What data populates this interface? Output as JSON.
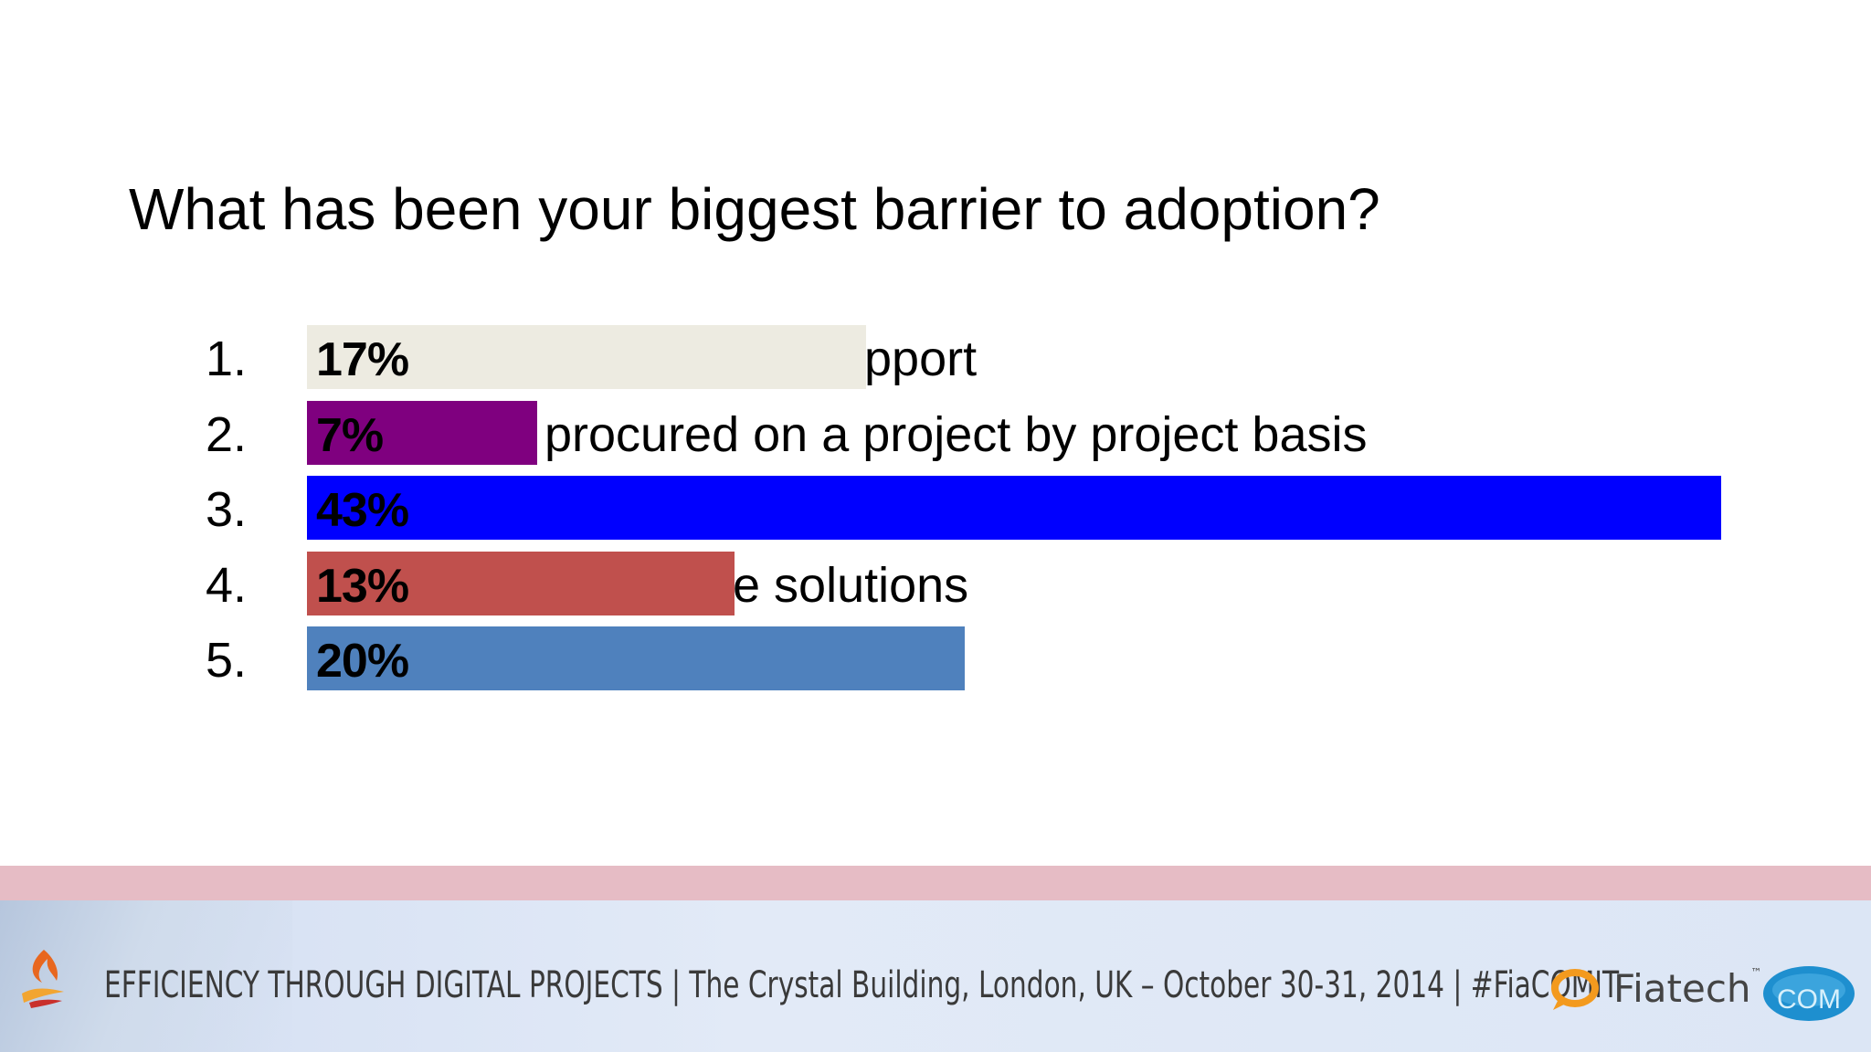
{
  "slide": {
    "title": "What has been your biggest barrier to adoption?"
  },
  "chart_data": {
    "type": "bar",
    "orientation": "horizontal",
    "title": "",
    "categories": [
      "1.",
      "2.",
      "3.",
      "4.",
      "5."
    ],
    "values": [
      17,
      7,
      43,
      13,
      20
    ],
    "labels": [
      "17%",
      "7%",
      "43%",
      "13%",
      "20%"
    ],
    "colors": [
      "#edebe1",
      "#7f007f",
      "#0000ff",
      "#c0504d",
      "#4f81bd"
    ],
    "partial_answer_text": [
      "pport",
      "procured on a project by project basis",
      "",
      "e solutions",
      ""
    ],
    "xlim": [
      0,
      43
    ]
  },
  "footer": {
    "text": "EFFICIENCY THROUGH DIGITAL PROJECTS | The Crystal Building, London, UK – October 30-31, 2014 | #FiaCOMIT",
    "fiatech": "Fiatech",
    "fiatech_tm": "™",
    "com_logo": "COM",
    "strip_color": "#e6bcc5",
    "icons": [
      "flame-logo-icon",
      "fiatech-logo-icon",
      "com-logo-icon"
    ]
  }
}
